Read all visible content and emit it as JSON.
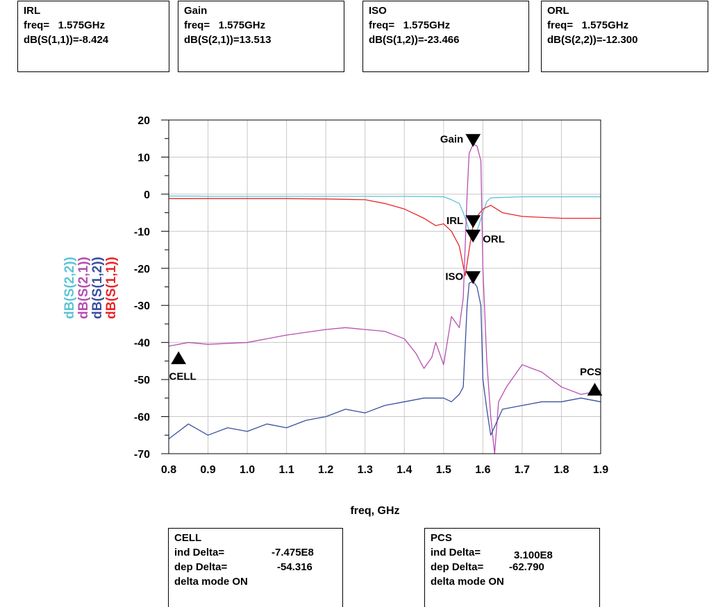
{
  "marker_boxes_top": [
    {
      "title": "IRL",
      "line1": "freq=   1.575GHz",
      "line2": "dB(S(1,1))=-8.424"
    },
    {
      "title": "Gain",
      "line1": "freq=   1.575GHz",
      "line2": "dB(S(2,1))=13.513"
    },
    {
      "title": "ISO",
      "line1": "freq=   1.575GHz",
      "line2": "dB(S(1,2))=-23.466"
    },
    {
      "title": "ORL",
      "line1": "freq=   1.575GHz",
      "line2": "dB(S(2,2))=-12.300"
    }
  ],
  "delta_boxes": [
    {
      "title": "CELL",
      "ind_label": "ind Delta=",
      "ind_value": "-7.475E8",
      "dep_label": "dep Delta=",
      "dep_value": "-54.316",
      "mode": "delta mode ON"
    },
    {
      "title": "PCS",
      "ind_label": "ind Delta=",
      "ind_value": "3.100E8",
      "dep_label": "dep Delta=",
      "dep_value": "-62.790",
      "mode": "delta mode ON"
    }
  ],
  "colors": {
    "s22": "#5cc4d6",
    "s21": "#b64fb0",
    "s12": "#3a4fa0",
    "s11": "#e8262a",
    "grid": "#c8c8c8"
  },
  "chart_data": {
    "type": "line",
    "title": "",
    "xlabel": "freq, GHz",
    "ylabel_series_labels": [
      "dB(S(2,2))",
      "dB(S(2,1))",
      "dB(S(1,2))",
      "dB(S(1,1))"
    ],
    "xlim": [
      0.8,
      1.9
    ],
    "ylim": [
      -70,
      20
    ],
    "x_ticks": [
      "0.8",
      "0.9",
      "1.0",
      "1.1",
      "1.2",
      "1.3",
      "1.4",
      "1.5",
      "1.6",
      "1.7",
      "1.8",
      "1.9"
    ],
    "y_ticks": [
      "20",
      "10",
      "0",
      "-10",
      "-20",
      "-30",
      "-40",
      "-50",
      "-60",
      "-70"
    ],
    "grid": true,
    "series": [
      {
        "name": "dB(S(2,2))",
        "color_key": "s22",
        "x": [
          0.8,
          0.85,
          0.9,
          1.0,
          1.1,
          1.2,
          1.3,
          1.4,
          1.5,
          1.52,
          1.54,
          1.55,
          1.56,
          1.565,
          1.575,
          1.585,
          1.6,
          1.61,
          1.62,
          1.7,
          1.8,
          1.9
        ],
        "y": [
          -0.5,
          -0.5,
          -0.6,
          -0.6,
          -0.6,
          -0.6,
          -0.6,
          -0.6,
          -0.7,
          -1.5,
          -2.5,
          -5,
          -8,
          -10,
          -12.3,
          -10,
          -5,
          -2,
          -1,
          -0.7,
          -0.7,
          -0.7
        ]
      },
      {
        "name": "dB(S(1,1))",
        "color_key": "s11",
        "x": [
          0.8,
          0.9,
          1.0,
          1.1,
          1.2,
          1.3,
          1.35,
          1.4,
          1.45,
          1.48,
          1.5,
          1.52,
          1.54,
          1.555,
          1.565,
          1.575,
          1.585,
          1.6,
          1.62,
          1.65,
          1.7,
          1.8,
          1.9
        ],
        "y": [
          -1.2,
          -1.2,
          -1.2,
          -1.2,
          -1.3,
          -1.5,
          -2.5,
          -4,
          -6.5,
          -8.5,
          -8,
          -10,
          -14,
          -22,
          -15,
          -8.4,
          -6,
          -4,
          -3,
          -5,
          -6,
          -6.5,
          -6.5
        ]
      },
      {
        "name": "dB(S(2,1))",
        "color_key": "s21",
        "x": [
          0.8,
          0.85,
          0.9,
          1.0,
          1.1,
          1.2,
          1.25,
          1.3,
          1.35,
          1.4,
          1.43,
          1.45,
          1.47,
          1.48,
          1.5,
          1.52,
          1.54,
          1.55,
          1.56,
          1.565,
          1.575,
          1.585,
          1.595,
          1.6,
          1.61,
          1.62,
          1.63,
          1.64,
          1.66,
          1.7,
          1.75,
          1.8,
          1.85,
          1.9
        ],
        "y": [
          -41,
          -40,
          -40.5,
          -40,
          -38,
          -36.5,
          -36,
          -36.5,
          -37,
          -39,
          -43,
          -47,
          -44,
          -40,
          -46,
          -33,
          -36,
          -28,
          0,
          11,
          13.5,
          13,
          9,
          -20,
          -45,
          -60,
          -70,
          -56,
          -52,
          -46,
          -48,
          -52,
          -54,
          -53
        ]
      },
      {
        "name": "dB(S(1,2))",
        "color_key": "s12",
        "x": [
          0.8,
          0.85,
          0.9,
          0.95,
          1.0,
          1.05,
          1.1,
          1.15,
          1.2,
          1.25,
          1.3,
          1.35,
          1.4,
          1.45,
          1.5,
          1.52,
          1.54,
          1.55,
          1.56,
          1.565,
          1.575,
          1.585,
          1.595,
          1.6,
          1.61,
          1.62,
          1.65,
          1.7,
          1.75,
          1.8,
          1.85,
          1.9
        ],
        "y": [
          -66,
          -62,
          -65,
          -63,
          -64,
          -62,
          -63,
          -61,
          -60,
          -58,
          -59,
          -57,
          -56,
          -55,
          -55,
          -56,
          -54,
          -52,
          -30,
          -24,
          -23.5,
          -25,
          -30,
          -50,
          -58,
          -65,
          -58,
          -57,
          -56,
          -56,
          -55,
          -56
        ]
      }
    ],
    "markers": [
      {
        "label": "Gain",
        "x": 1.575,
        "y": 13.5,
        "dir": "down",
        "label_side": "left"
      },
      {
        "label": "IRL",
        "x": 1.575,
        "y": -8.4,
        "dir": "down",
        "label_side": "left"
      },
      {
        "label": "ORL",
        "x": 1.575,
        "y": -12.3,
        "dir": "down",
        "label_side": "right"
      },
      {
        "label": "ISO",
        "x": 1.575,
        "y": -23.5,
        "dir": "down",
        "label_side": "left"
      },
      {
        "label": "CELL",
        "x": 0.825,
        "y": -43.5,
        "dir": "up",
        "label_side": "below"
      },
      {
        "label": "PCS",
        "x": 1.885,
        "y": -52,
        "dir": "up",
        "label_side": "above"
      }
    ]
  }
}
